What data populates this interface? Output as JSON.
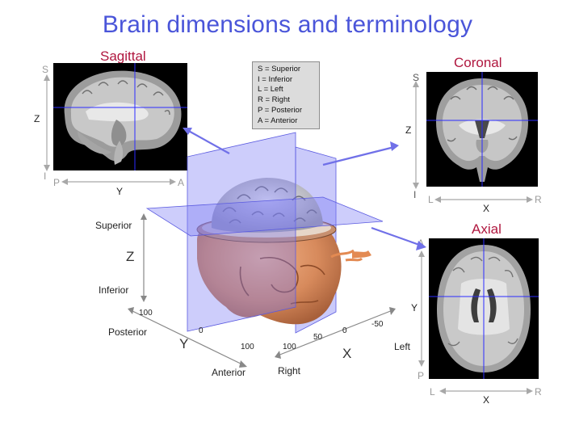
{
  "title": "Brain dimensions and terminology",
  "legend": [
    "S = Superior",
    "I  = Inferior",
    "L = Left",
    "R = Right",
    "P = Posterior",
    "A = Anterior"
  ],
  "sagittal": {
    "title": "Sagittal",
    "top": "S",
    "bottom": "I",
    "left": "P",
    "right": "A",
    "vaxis": "Z",
    "haxis": "Y"
  },
  "coronal": {
    "title": "Coronal",
    "top": "S",
    "bottom": "I",
    "left": "L",
    "right": "R",
    "vaxis": "Z",
    "haxis": "X"
  },
  "axial": {
    "title": "Axial",
    "top": "A",
    "bottom": "P",
    "left": "L",
    "right": "R",
    "vaxis": "Y",
    "haxis": "X"
  },
  "head3d": {
    "superior": "Superior",
    "inferior": "Inferior",
    "z": "Z",
    "posterior": "Posterior",
    "anterior": "Anterior",
    "y": "Y",
    "left": "Left",
    "right": "Right",
    "x": "X",
    "ytick_100a": "100",
    "ytick_0": "0",
    "ytick_100b": "100",
    "xtick_100": "100",
    "xtick_50": "50",
    "xtick_0": "0",
    "xtick_m50": "-50"
  },
  "colors": {
    "title": "#4a55d9",
    "view_title": "#b0173f",
    "plane": "#7b7bf5",
    "crosshair": "#2b2bff",
    "arrow": "#7070e8"
  }
}
